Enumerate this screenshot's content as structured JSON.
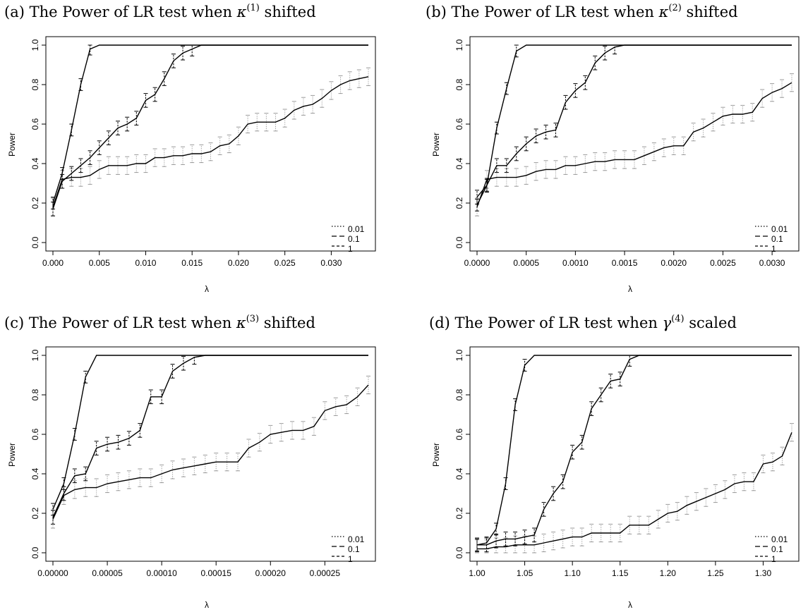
{
  "chart_data": [
    {
      "type": "line",
      "title_pre": "(a) The Power of LR test when ",
      "title_sym": "κ",
      "title_sup": "(1)",
      "title_post": " shifted",
      "xlabel": "λ",
      "ylabel": "Power",
      "xlim": [
        0,
        0.034
      ],
      "ylim": [
        0,
        1
      ],
      "x_ticks": [
        "0.000",
        "0.005",
        "0.010",
        "0.015",
        "0.020",
        "0.025",
        "0.030",
        "0.035"
      ],
      "y_ticks": [
        "0.0",
        "0.2",
        "0.4",
        "0.6",
        "0.8",
        "1.0"
      ],
      "legend_position": "bottom-right",
      "x": [
        0,
        0.001,
        0.002,
        0.003,
        0.004,
        0.005,
        0.006,
        0.007,
        0.008,
        0.009,
        0.01,
        0.011,
        0.012,
        0.013,
        0.014,
        0.015,
        0.016,
        0.017,
        0.018,
        0.019,
        0.02,
        0.021,
        0.022,
        0.023,
        0.024,
        0.025,
        0.026,
        0.027,
        0.028,
        0.029,
        0.03,
        0.031,
        0.032,
        0.033,
        0.034
      ],
      "series": [
        {
          "name": "0.01",
          "values": [
            0.18,
            0.32,
            0.33,
            0.33,
            0.34,
            0.37,
            0.39,
            0.39,
            0.39,
            0.4,
            0.4,
            0.43,
            0.43,
            0.44,
            0.44,
            0.45,
            0.45,
            0.46,
            0.49,
            0.5,
            0.54,
            0.6,
            0.61,
            0.61,
            0.61,
            0.63,
            0.67,
            0.69,
            0.7,
            0.73,
            0.77,
            0.8,
            0.82,
            0.83,
            0.84
          ]
        },
        {
          "name": "0.1",
          "values": [
            0.17,
            0.31,
            0.35,
            0.39,
            0.43,
            0.48,
            0.53,
            0.58,
            0.6,
            0.63,
            0.72,
            0.75,
            0.83,
            0.92,
            0.96,
            0.98,
            1.0,
            1.0,
            1.0,
            1.0,
            1.0,
            1.0,
            1.0,
            1.0,
            1.0,
            1.0,
            1.0,
            1.0,
            1.0,
            1.0,
            1.0,
            1.0,
            1.0,
            1.0,
            1.0
          ]
        },
        {
          "name": "1",
          "values": [
            0.2,
            0.35,
            0.57,
            0.8,
            0.98,
            1.0,
            1.0,
            1.0,
            1.0,
            1.0,
            1.0,
            1.0,
            1.0,
            1.0,
            1.0,
            1.0,
            1.0,
            1.0,
            1.0,
            1.0,
            1.0,
            1.0,
            1.0,
            1.0,
            1.0,
            1.0,
            1.0,
            1.0,
            1.0,
            1.0,
            1.0,
            1.0,
            1.0,
            1.0,
            1.0
          ]
        }
      ]
    },
    {
      "type": "line",
      "title_pre": "(b) The Power of LR test when ",
      "title_sym": "κ",
      "title_sup": "(2)",
      "title_post": " shifted",
      "xlabel": "λ",
      "ylabel": "Power",
      "xlim": [
        0,
        0.0032
      ],
      "ylim": [
        0,
        1
      ],
      "x_ticks": [
        "0.0000",
        "0.0005",
        "0.0010",
        "0.0015",
        "0.0020",
        "0.0025",
        "0.0030"
      ],
      "y_ticks": [
        "0.0",
        "0.2",
        "0.4",
        "0.6",
        "0.8",
        "1.0"
      ],
      "legend_position": "bottom-right",
      "x": [
        0,
        0.0001,
        0.0002,
        0.0003,
        0.0004,
        0.0005,
        0.0006,
        0.0007,
        0.0008,
        0.0009,
        0.001,
        0.0011,
        0.0012,
        0.0013,
        0.0014,
        0.0015,
        0.0016,
        0.0017,
        0.0018,
        0.0019,
        0.002,
        0.0021,
        0.0022,
        0.0023,
        0.0024,
        0.0025,
        0.0026,
        0.0027,
        0.0028,
        0.0029,
        0.003,
        0.0031,
        0.0032
      ],
      "series": [
        {
          "name": "0.01",
          "values": [
            0.18,
            0.32,
            0.33,
            0.33,
            0.33,
            0.34,
            0.36,
            0.37,
            0.37,
            0.39,
            0.39,
            0.4,
            0.41,
            0.41,
            0.42,
            0.42,
            0.42,
            0.44,
            0.46,
            0.48,
            0.49,
            0.49,
            0.56,
            0.58,
            0.61,
            0.64,
            0.65,
            0.65,
            0.66,
            0.73,
            0.76,
            0.78,
            0.81
          ]
        },
        {
          "name": "0.1",
          "values": [
            0.23,
            0.29,
            0.39,
            0.39,
            0.45,
            0.5,
            0.54,
            0.56,
            0.57,
            0.71,
            0.77,
            0.81,
            0.91,
            0.96,
            0.99,
            1.0,
            1.0,
            1.0,
            1.0,
            1.0,
            1.0,
            1.0,
            1.0,
            1.0,
            1.0,
            1.0,
            1.0,
            1.0,
            1.0,
            1.0,
            1.0,
            1.0,
            1.0
          ]
        },
        {
          "name": "1",
          "values": [
            0.19,
            0.29,
            0.58,
            0.78,
            0.97,
            1.0,
            1.0,
            1.0,
            1.0,
            1.0,
            1.0,
            1.0,
            1.0,
            1.0,
            1.0,
            1.0,
            1.0,
            1.0,
            1.0,
            1.0,
            1.0,
            1.0,
            1.0,
            1.0,
            1.0,
            1.0,
            1.0,
            1.0,
            1.0,
            1.0,
            1.0,
            1.0,
            1.0
          ]
        }
      ]
    },
    {
      "type": "line",
      "title_pre": "(c) The Power of LR test when ",
      "title_sym": "κ",
      "title_sup": "(3)",
      "title_post": " shifted",
      "xlabel": "λ",
      "ylabel": "Power",
      "xlim": [
        0,
        0.00029
      ],
      "ylim": [
        0,
        1
      ],
      "x_ticks": [
        "0.00000",
        "0.00005",
        "0.00010",
        "0.00015",
        "0.00020",
        "0.00025",
        "0.00030"
      ],
      "y_ticks": [
        "0.0",
        "0.2",
        "0.4",
        "0.6",
        "0.8",
        "1.0"
      ],
      "legend_position": "bottom-right",
      "x": [
        0,
        1e-05,
        2e-05,
        3e-05,
        4e-05,
        5e-05,
        6e-05,
        7e-05,
        8e-05,
        9e-05,
        0.0001,
        0.00011,
        0.00012,
        0.00013,
        0.00014,
        0.00015,
        0.00016,
        0.00017,
        0.00018,
        0.00019,
        0.0002,
        0.00021,
        0.00022,
        0.00023,
        0.00024,
        0.00025,
        0.00026,
        0.00027,
        0.00028,
        0.00029
      ],
      "series": [
        {
          "name": "0.01",
          "values": [
            0.17,
            0.29,
            0.32,
            0.33,
            0.33,
            0.35,
            0.36,
            0.37,
            0.38,
            0.38,
            0.4,
            0.42,
            0.43,
            0.44,
            0.45,
            0.46,
            0.46,
            0.46,
            0.53,
            0.56,
            0.6,
            0.61,
            0.62,
            0.62,
            0.64,
            0.72,
            0.74,
            0.75,
            0.79,
            0.85
          ]
        },
        {
          "name": "0.1",
          "values": [
            0.18,
            0.3,
            0.39,
            0.4,
            0.53,
            0.55,
            0.56,
            0.58,
            0.62,
            0.79,
            0.79,
            0.92,
            0.96,
            0.99,
            1.0,
            1.0,
            1.0,
            1.0,
            1.0,
            1.0,
            1.0,
            1.0,
            1.0,
            1.0,
            1.0,
            1.0,
            1.0,
            1.0,
            1.0,
            1.0
          ]
        },
        {
          "name": "1",
          "values": [
            0.22,
            0.35,
            0.6,
            0.89,
            1.0,
            1.0,
            1.0,
            1.0,
            1.0,
            1.0,
            1.0,
            1.0,
            1.0,
            1.0,
            1.0,
            1.0,
            1.0,
            1.0,
            1.0,
            1.0,
            1.0,
            1.0,
            1.0,
            1.0,
            1.0,
            1.0,
            1.0,
            1.0,
            1.0,
            1.0
          ]
        }
      ]
    },
    {
      "type": "line",
      "title_pre": "(d) The Power of LR test when ",
      "title_sym": "γ",
      "title_sup": "(4)",
      "title_post": " scaled",
      "xlabel": "λ",
      "ylabel": "Power",
      "xlim": [
        1.0,
        1.33
      ],
      "ylim": [
        0,
        1
      ],
      "x_ticks": [
        "1.00",
        "1.05",
        "1.10",
        "1.15",
        "1.20",
        "1.25",
        "1.30"
      ],
      "y_ticks": [
        "0.0",
        "0.2",
        "0.4",
        "0.6",
        "0.8",
        "1.0"
      ],
      "legend_position": "bottom-right",
      "x": [
        1.0,
        1.01,
        1.02,
        1.03,
        1.04,
        1.05,
        1.06,
        1.07,
        1.08,
        1.09,
        1.1,
        1.11,
        1.12,
        1.13,
        1.14,
        1.15,
        1.16,
        1.17,
        1.18,
        1.19,
        1.2,
        1.21,
        1.22,
        1.23,
        1.24,
        1.25,
        1.26,
        1.27,
        1.28,
        1.29,
        1.3,
        1.31,
        1.32,
        1.33
      ],
      "series": [
        {
          "name": "0.01",
          "values": [
            0.02,
            0.02,
            0.03,
            0.03,
            0.04,
            0.04,
            0.04,
            0.05,
            0.06,
            0.07,
            0.08,
            0.08,
            0.1,
            0.1,
            0.1,
            0.1,
            0.14,
            0.14,
            0.14,
            0.17,
            0.2,
            0.21,
            0.24,
            0.26,
            0.28,
            0.3,
            0.32,
            0.35,
            0.36,
            0.36,
            0.45,
            0.46,
            0.49,
            0.61
          ]
        },
        {
          "name": "0.1",
          "values": [
            0.04,
            0.04,
            0.06,
            0.07,
            0.07,
            0.08,
            0.09,
            0.22,
            0.3,
            0.36,
            0.51,
            0.56,
            0.73,
            0.8,
            0.87,
            0.88,
            0.98,
            1.0,
            1.0,
            1.0,
            1.0,
            1.0,
            1.0,
            1.0,
            1.0,
            1.0,
            1.0,
            1.0,
            1.0,
            1.0,
            1.0,
            1.0,
            1.0,
            1.0
          ]
        },
        {
          "name": "1",
          "values": [
            0.04,
            0.05,
            0.12,
            0.35,
            0.75,
            0.95,
            1.0,
            1.0,
            1.0,
            1.0,
            1.0,
            1.0,
            1.0,
            1.0,
            1.0,
            1.0,
            1.0,
            1.0,
            1.0,
            1.0,
            1.0,
            1.0,
            1.0,
            1.0,
            1.0,
            1.0,
            1.0,
            1.0,
            1.0,
            1.0,
            1.0,
            1.0,
            1.0,
            1.0
          ]
        }
      ]
    }
  ]
}
